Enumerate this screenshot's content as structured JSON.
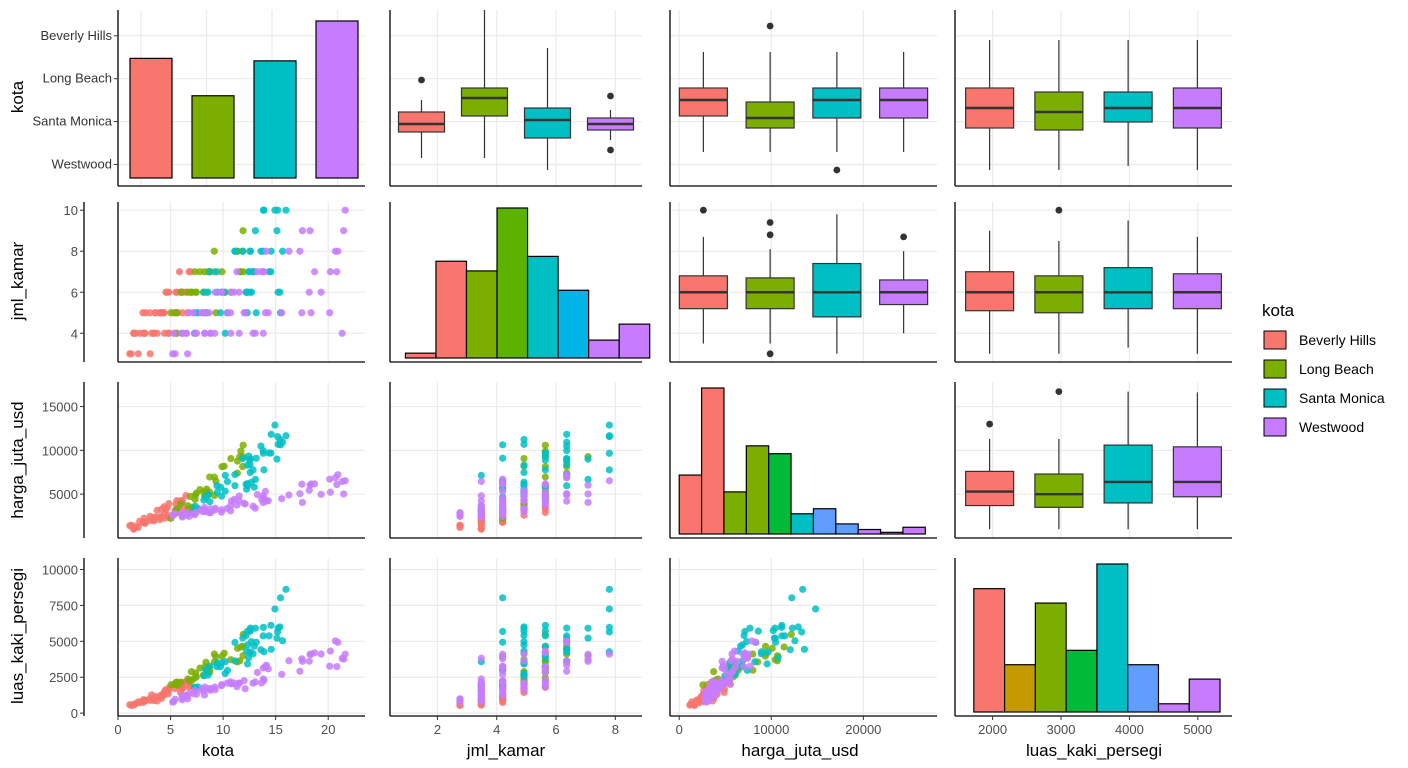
{
  "colors": {
    "Beverly Hills": "#F8766D",
    "Long Beach": "#7CAE00",
    "Santa Monica": "#00BFC4",
    "Westwood": "#C77CFF",
    "grid": "#EBEBEB",
    "axis": "#000000",
    "outlier": "#333333"
  },
  "chart_data": {
    "type": "pairs",
    "variables": [
      "kota",
      "jml_kamar",
      "harga_juta_usd",
      "luas_kaki_persegi"
    ],
    "row_labels": [
      "kota",
      "jml_kamar",
      "harga_juta_usd",
      "luas_kaki_persegi"
    ],
    "col_labels": [
      "kota",
      "jml_kamar",
      "harga_juta_usd",
      "luas_kaki_persegi"
    ],
    "categories": [
      "Beverly Hills",
      "Long Beach",
      "Santa Monica",
      "Westwood"
    ],
    "legend": {
      "title": "kota",
      "entries": [
        "Beverly Hills",
        "Long Beach",
        "Santa Monica",
        "Westwood"
      ],
      "position": "right"
    },
    "axes": {
      "kota_x": {
        "range": [
          0,
          23.5
        ],
        "ticks": [
          0,
          5,
          10,
          15,
          20
        ]
      },
      "jml_kamar_x": {
        "range": [
          0.4,
          8.9
        ],
        "ticks": [
          2,
          4,
          6,
          8
        ]
      },
      "harga_x": {
        "range": [
          -1000,
          28000
        ],
        "ticks": [
          0,
          10000,
          20000
        ]
      },
      "luas_x": {
        "range": [
          1450,
          5500
        ],
        "ticks": [
          2000,
          3000,
          4000,
          5000
        ]
      },
      "jml_kamar_y": {
        "range": [
          2.6,
          10.4
        ],
        "ticks": [
          4,
          6,
          8,
          10
        ]
      },
      "harga_y": {
        "range": [
          0,
          17800
        ],
        "ticks": [
          5000,
          10000,
          15000
        ]
      },
      "luas_y": {
        "range": [
          -200,
          10800
        ],
        "ticks": [
          0,
          2500,
          5000,
          7500,
          10000
        ]
      }
    },
    "kota_bar": {
      "type": "bar",
      "categories": [
        "Beverly Hills",
        "Long Beach",
        "Santa Monica",
        "Westwood"
      ],
      "values": [
        48,
        33,
        47,
        63
      ],
      "ylabels": [
        "Beverly Hills",
        "Long Beach",
        "Santa Monica",
        "Westwood"
      ]
    },
    "box_kota_by_jml_kamar": [
      {
        "name": "Beverly Hills",
        "q1": 3.4,
        "median": 3.8,
        "q3": 4.4,
        "lo": 2.1,
        "hi": 5.0,
        "outliers": [
          6.0
        ]
      },
      {
        "name": "Long Beach",
        "q1": 4.2,
        "median": 5.1,
        "q3": 5.6,
        "lo": 2.1,
        "hi": 9.5,
        "outliers": []
      },
      {
        "name": "Santa Monica",
        "q1": 3.1,
        "median": 4.0,
        "q3": 4.6,
        "lo": 1.5,
        "hi": 7.6,
        "outliers": []
      },
      {
        "name": "Westwood",
        "q1": 3.5,
        "median": 3.8,
        "q3": 4.1,
        "lo": 3.0,
        "hi": 4.5,
        "outliers": [
          5.2,
          2.5
        ]
      }
    ],
    "box_kota_by_harga": [
      {
        "name": "Beverly Hills",
        "q1": 4.2,
        "median": 5.0,
        "q3": 5.6,
        "lo": 2.4,
        "hi": 7.4,
        "outliers": []
      },
      {
        "name": "Long Beach",
        "q1": 3.6,
        "median": 4.1,
        "q3": 4.9,
        "lo": 2.4,
        "hi": 7.4,
        "outliers": [
          8.7
        ]
      },
      {
        "name": "Santa Monica",
        "q1": 4.1,
        "median": 5.0,
        "q3": 5.6,
        "lo": 2.4,
        "hi": 7.4,
        "outliers": [
          1.5
        ]
      },
      {
        "name": "Westwood",
        "q1": 4.1,
        "median": 5.0,
        "q3": 5.6,
        "lo": 2.4,
        "hi": 7.4,
        "outliers": []
      }
    ],
    "box_kota_by_luas": [
      {
        "name": "Beverly Hills",
        "q1": 3.6,
        "median": 4.6,
        "q3": 5.6,
        "lo": 1.5,
        "hi": 8.0,
        "outliers": []
      },
      {
        "name": "Long Beach",
        "q1": 3.5,
        "median": 4.4,
        "q3": 5.4,
        "lo": 1.5,
        "hi": 8.0,
        "outliers": []
      },
      {
        "name": "Santa Monica",
        "q1": 3.9,
        "median": 4.6,
        "q3": 5.4,
        "lo": 1.7,
        "hi": 8.0,
        "outliers": []
      },
      {
        "name": "Westwood",
        "q1": 3.6,
        "median": 4.6,
        "q3": 5.6,
        "lo": 1.5,
        "hi": 8.0,
        "outliers": []
      }
    ],
    "box_jml_kamar_by_kota": [
      {
        "name": "Beverly Hills",
        "q1": 5.2,
        "median": 6.0,
        "q3": 6.8,
        "lo": 3.5,
        "hi": 8.7,
        "outliers": [
          10.0
        ]
      },
      {
        "name": "Long Beach",
        "q1": 5.2,
        "median": 6.0,
        "q3": 6.7,
        "lo": 3.5,
        "hi": 8.1,
        "outliers": [
          9.4,
          8.8,
          3.0
        ]
      },
      {
        "name": "Santa Monica",
        "q1": 4.8,
        "median": 6.0,
        "q3": 7.4,
        "lo": 3.0,
        "hi": 9.8,
        "outliers": []
      },
      {
        "name": "Westwood",
        "q1": 5.4,
        "median": 6.0,
        "q3": 6.6,
        "lo": 4.0,
        "hi": 8.0,
        "outliers": [
          8.7
        ]
      }
    ],
    "box_jml_kamar_by_luas": [
      {
        "name": "Beverly Hills",
        "q1": 5.1,
        "median": 6.0,
        "q3": 7.0,
        "lo": 3.0,
        "hi": 9.0,
        "outliers": []
      },
      {
        "name": "Long Beach",
        "q1": 5.0,
        "median": 6.0,
        "q3": 6.8,
        "lo": 3.0,
        "hi": 8.5,
        "outliers": [
          10.0
        ]
      },
      {
        "name": "Santa Monica",
        "q1": 5.2,
        "median": 6.0,
        "q3": 7.2,
        "lo": 3.3,
        "hi": 9.5,
        "outliers": []
      },
      {
        "name": "Westwood",
        "q1": 5.2,
        "median": 6.0,
        "q3": 6.9,
        "lo": 3.0,
        "hi": 8.7,
        "outliers": []
      }
    ],
    "box_harga_by_luas": [
      {
        "name": "Beverly Hills",
        "q1": 3700,
        "median": 5300,
        "q3": 7600,
        "lo": 1000,
        "hi": 11300,
        "outliers": [
          13000
        ]
      },
      {
        "name": "Long Beach",
        "q1": 3500,
        "median": 5000,
        "q3": 7300,
        "lo": 1000,
        "hi": 11300,
        "outliers": [
          16700
        ]
      },
      {
        "name": "Santa Monica",
        "q1": 4000,
        "median": 6400,
        "q3": 10600,
        "lo": 1000,
        "hi": 16700,
        "outliers": []
      },
      {
        "name": "Westwood",
        "q1": 4700,
        "median": 6400,
        "q3": 10400,
        "lo": 1000,
        "hi": 16600,
        "outliers": []
      }
    ],
    "hist_jml_kamar": {
      "bars": [
        {
          "x0": 0.92,
          "x1": 1.95,
          "count": 1
        },
        {
          "x0": 1.95,
          "x1": 2.98,
          "count": 20
        },
        {
          "x0": 2.98,
          "x1": 4.01,
          "count": 18
        },
        {
          "x0": 4.01,
          "x1": 5.04,
          "count": 31
        },
        {
          "x0": 5.04,
          "x1": 6.07,
          "count": 21
        },
        {
          "x0": 6.07,
          "x1": 7.1,
          "count": 14
        },
        {
          "x0": 7.1,
          "x1": 8.13,
          "count": 3.7
        },
        {
          "x0": 8.13,
          "x1": 9.16,
          "count": 7
        }
      ],
      "fills": [
        "#F8766D",
        "#F8766D",
        "#7CAE00",
        "#5BB300",
        "#00BFC4",
        "#00B4E5",
        "#C77CFF",
        "#C77CFF"
      ]
    },
    "hist_harga": {
      "bars": [
        {
          "x0": 0,
          "x1": 2430,
          "count": 10.5
        },
        {
          "x0": 2430,
          "x1": 4860,
          "count": 26
        },
        {
          "x0": 4860,
          "x1": 7290,
          "count": 7.5
        },
        {
          "x0": 7290,
          "x1": 9720,
          "count": 15.7
        },
        {
          "x0": 9720,
          "x1": 12150,
          "count": 14.3
        },
        {
          "x0": 12150,
          "x1": 14580,
          "count": 3.6
        },
        {
          "x0": 14580,
          "x1": 17010,
          "count": 4.5
        },
        {
          "x0": 17010,
          "x1": 19440,
          "count": 1.8
        },
        {
          "x0": 19440,
          "x1": 21870,
          "count": 0.8
        },
        {
          "x0": 21870,
          "x1": 24300,
          "count": 0.3
        },
        {
          "x0": 24300,
          "x1": 26730,
          "count": 1.2
        }
      ],
      "fills": [
        "#F8766D",
        "#F8766D",
        "#7CAE00",
        "#7CAE00",
        "#00BA38",
        "#00BFC4",
        "#619CFF",
        "#619CFF",
        "#C77CFF",
        "#C77CFF",
        "#C77CFF"
      ]
    },
    "hist_luas": {
      "bars": [
        {
          "x0": 1725,
          "x1": 2175,
          "count": 30
        },
        {
          "x0": 2175,
          "x1": 2625,
          "count": 11.5
        },
        {
          "x0": 2625,
          "x1": 3075,
          "count": 26.5
        },
        {
          "x0": 3075,
          "x1": 3525,
          "count": 15
        },
        {
          "x0": 3525,
          "x1": 3975,
          "count": 36
        },
        {
          "x0": 3975,
          "x1": 4425,
          "count": 11.5
        },
        {
          "x0": 4425,
          "x1": 4875,
          "count": 2
        },
        {
          "x0": 4875,
          "x1": 5325,
          "count": 8
        }
      ],
      "fills": [
        "#F8766D",
        "#C49A00",
        "#7CAE00",
        "#00BA38",
        "#00BFC4",
        "#619CFF",
        "#C77CFF",
        "#C77CFF"
      ]
    }
  }
}
